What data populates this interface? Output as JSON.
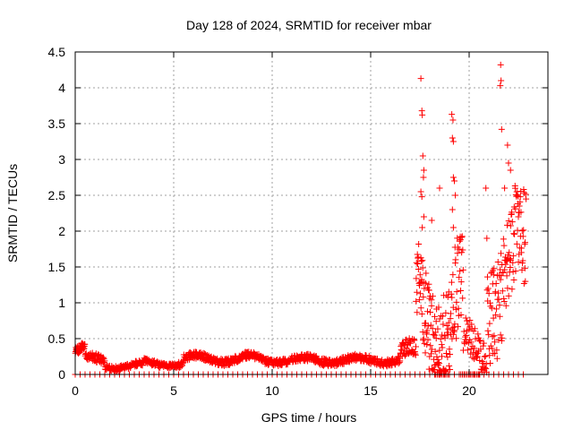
{
  "chart_data": {
    "type": "scatter",
    "title": "Day 128 of 2024, SRMTID for receiver mbar",
    "xlabel": "GPS time / hours",
    "ylabel": "SRMTID / TECUs",
    "xlim": [
      0,
      24
    ],
    "ylim": [
      0,
      4.5
    ],
    "xticks": [
      0,
      5,
      10,
      15,
      20
    ],
    "xtick_labels": [
      "0",
      "5",
      "10",
      "15",
      "20"
    ],
    "yticks": [
      0,
      0.5,
      1,
      1.5,
      2,
      2.5,
      3,
      3.5,
      4,
      4.5
    ],
    "ytick_labels": [
      "0",
      "0.5",
      "1",
      "1.5",
      "2",
      "2.5",
      "3",
      "3.5",
      "4",
      "4.5"
    ],
    "grid": true,
    "marker": "plus",
    "series_color": "#ff0000",
    "series": [
      {
        "name": "SRMTID",
        "segments": [
          {
            "x0": 0.0,
            "x1": 0.5,
            "base": 0.32,
            "amp": 0.08,
            "noise": 0.06,
            "n": 35
          },
          {
            "x0": 0.5,
            "x1": 1.5,
            "base": 0.2,
            "amp": 0.05,
            "noise": 0.06,
            "n": 60
          },
          {
            "x0": 1.5,
            "x1": 3.5,
            "base": 0.12,
            "amp": 0.04,
            "noise": 0.04,
            "n": 110
          },
          {
            "x0": 3.5,
            "x1": 5.5,
            "base": 0.15,
            "amp": 0.04,
            "noise": 0.04,
            "n": 110
          },
          {
            "x0": 5.5,
            "x1": 9.5,
            "base": 0.22,
            "amp": 0.05,
            "noise": 0.05,
            "n": 220
          },
          {
            "x0": 9.5,
            "x1": 16.5,
            "base": 0.2,
            "amp": 0.04,
            "noise": 0.05,
            "n": 380
          },
          {
            "x0": 16.5,
            "x1": 17.3,
            "base": 0.3,
            "amp": 0.1,
            "noise": 0.12,
            "n": 50
          },
          {
            "x0": 17.3,
            "x1": 18.5,
            "base": 0.9,
            "amp": 0.5,
            "noise": 0.6,
            "n": 90
          },
          {
            "x0": 18.5,
            "x1": 19.7,
            "base": 0.9,
            "amp": 0.6,
            "noise": 0.7,
            "n": 80
          },
          {
            "x0": 19.7,
            "x1": 20.9,
            "base": 0.35,
            "amp": 0.2,
            "noise": 0.25,
            "n": 60
          },
          {
            "x0": 20.9,
            "x1": 22.9,
            "base": 1.4,
            "amp": 0.6,
            "noise": 0.7,
            "n": 130
          }
        ],
        "peaks": [
          [
            17.55,
            4.13
          ],
          [
            17.6,
            3.68
          ],
          [
            17.62,
            3.62
          ],
          [
            17.65,
            3.05
          ],
          [
            17.7,
            2.85
          ],
          [
            17.68,
            2.75
          ],
          [
            17.55,
            2.55
          ],
          [
            17.6,
            2.48
          ],
          [
            18.5,
            2.6
          ],
          [
            18.1,
            2.15
          ],
          [
            17.7,
            2.2
          ],
          [
            17.62,
            2.05
          ],
          [
            19.12,
            3.63
          ],
          [
            19.18,
            3.55
          ],
          [
            19.15,
            3.3
          ],
          [
            19.2,
            3.25
          ],
          [
            19.2,
            2.75
          ],
          [
            19.25,
            2.7
          ],
          [
            19.3,
            2.5
          ],
          [
            19.15,
            2.3
          ],
          [
            19.2,
            2.05
          ],
          [
            21.6,
            4.32
          ],
          [
            21.62,
            4.1
          ],
          [
            21.58,
            4.03
          ],
          [
            21.65,
            3.42
          ],
          [
            21.95,
            3.2
          ],
          [
            22.0,
            2.95
          ],
          [
            22.1,
            2.85
          ],
          [
            21.8,
            2.6
          ],
          [
            20.85,
            2.6
          ],
          [
            22.6,
            2.48
          ],
          [
            22.55,
            2.35
          ],
          [
            22.5,
            2.2
          ],
          [
            20.9,
            1.9
          ],
          [
            21.2,
            1.45
          ]
        ],
        "zero_rows": {
          "x0": 0.0,
          "x1": 22.9,
          "step": 0.25,
          "y": 0.0
        }
      }
    ]
  }
}
